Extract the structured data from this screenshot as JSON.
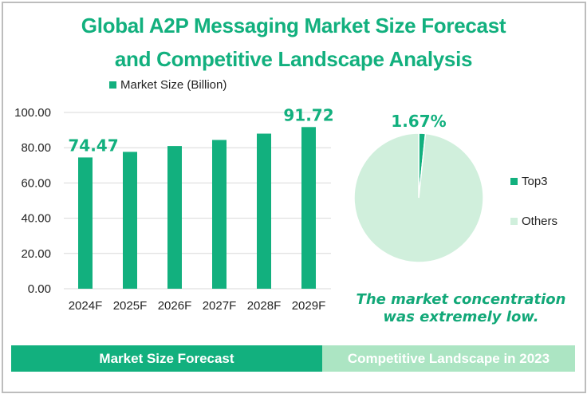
{
  "title": {
    "line1": "Global A2P Messaging Market Size Forecast",
    "line2": "and Competitive Landscape Analysis"
  },
  "colors": {
    "primary": "#12b07e",
    "light": "#d0efdc",
    "banner_light": "#ace5c3",
    "grid": "#d9d9d9",
    "text": "#222222"
  },
  "chart_data": [
    {
      "type": "bar",
      "title": "Market Size Forecast",
      "legend": [
        "Market Size (Billion)"
      ],
      "legend_position": "top",
      "categories": [
        "2024F",
        "2025F",
        "2026F",
        "2027F",
        "2028F",
        "2029F"
      ],
      "series": [
        {
          "name": "Market Size (Billion)",
          "values": [
            74.47,
            77.64,
            80.95,
            84.4,
            87.99,
            91.72
          ]
        }
      ],
      "data_labels": [
        {
          "index": 0,
          "text": "74.47"
        },
        {
          "index": 5,
          "text": "91.72"
        }
      ],
      "yticks": [
        "0.00",
        "20.00",
        "40.00",
        "60.00",
        "80.00",
        "100.00"
      ],
      "ylim": [
        0,
        100
      ],
      "grid": true,
      "xlabel": "",
      "ylabel": ""
    },
    {
      "type": "pie",
      "title": "Competitive Landscape in 2023",
      "labels": [
        "Top3",
        "Others"
      ],
      "values": [
        1.67,
        98.33
      ],
      "data_labels": [
        {
          "index": 0,
          "text": "1.67%"
        }
      ],
      "legend_position": "right"
    }
  ],
  "annotation": {
    "line1": "The market concentration",
    "line2": "was extremely low."
  },
  "banners": {
    "left": "Market Size Forecast",
    "right": "Competitive Landscape in 2023"
  }
}
